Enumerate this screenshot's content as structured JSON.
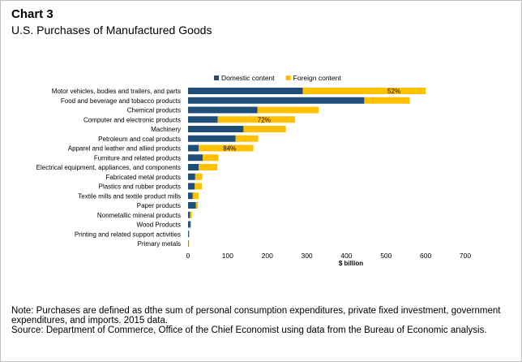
{
  "header": {
    "chart_label": "Chart 3",
    "title": "U.S. Purchases of Manufactured Goods"
  },
  "colors": {
    "domestic": "#1f4e79",
    "foreign": "#ffc000",
    "axis": "#bfbfbf"
  },
  "chart_data": {
    "type": "bar",
    "orientation": "horizontal",
    "stacked": true,
    "categories": [
      "Motor vehicles, bodies and trailers, and parts",
      "Food and beverage and tobacco products",
      "Chemical products",
      "Computer and electronic products",
      "Machinery",
      "Petroleum and coal products",
      "Apparel and leather and allied products",
      "Furniture and related products",
      "Electrical equipment, appliances, and components",
      "Fabricated metal products",
      "Plastics and rubber products",
      "Textile mills and textile product mills",
      "Paper products",
      "Nonmetallic mineral products",
      "Wood Products",
      "Printing and related support activities",
      "Primary metals"
    ],
    "series": [
      {
        "name": "Domestic content",
        "values": [
          290,
          445,
          175,
          75,
          140,
          120,
          27,
          37,
          27,
          18,
          17,
          12,
          20,
          5,
          6,
          2,
          1
        ]
      },
      {
        "name": "Foreign content",
        "values": [
          310,
          115,
          155,
          195,
          107,
          57,
          138,
          40,
          47,
          18,
          18,
          15,
          5,
          5,
          2,
          1,
          1
        ]
      }
    ],
    "annotations": [
      {
        "category": "Motor vehicles, bodies and trailers, and parts",
        "x": 520,
        "text": "52%"
      },
      {
        "category": "Computer and electronic products",
        "x": 192,
        "text": "72%"
      },
      {
        "category": "Apparel and leather and allied products",
        "x": 105,
        "text": "84%"
      }
    ],
    "xlabel": "$ billion",
    "xlim": [
      0,
      700
    ],
    "xticks": [
      0,
      100,
      200,
      300,
      400,
      500,
      600,
      700
    ],
    "legend_position": "top",
    "grid": false
  },
  "notes": {
    "note": "Note: Purchases are defined as dthe sum of personal consumption expenditures, private fixed investment, government expenditures, and imports. 2015 data.",
    "source": "Source: Department of Commerce, Office of the Chief Economist using data from the Bureau of Economic analysis."
  }
}
